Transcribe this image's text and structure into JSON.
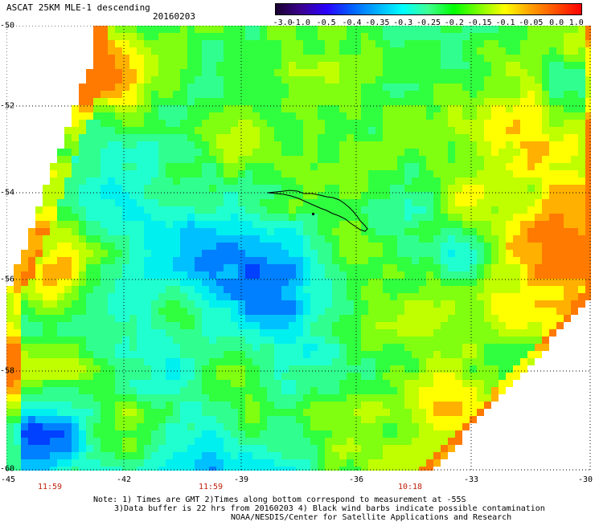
{
  "header": {
    "title": "ASCAT 25KM MLE-1 descending",
    "date": "20160203"
  },
  "colorbar": {
    "labels": [
      "-3.0",
      "-1.0",
      "-0.5",
      "-0.4",
      "-0.35",
      "-0.3",
      "-0.25",
      "-0.2",
      "-0.15",
      "-0.1",
      "-0.05",
      "0.0",
      "1.0"
    ],
    "colors": [
      "#1a0030",
      "#3a0090",
      "#2a00ff",
      "#0060ff",
      "#00b0ff",
      "#00ffff",
      "#40ff90",
      "#00ff00",
      "#80ff00",
      "#ffff00",
      "#ffa000",
      "#ff5000",
      "#ff0000"
    ]
  },
  "axes": {
    "lat_labels": [
      "-50",
      "-52",
      "-54",
      "-56",
      "-58",
      "-60"
    ],
    "lon_labels": [
      "-45",
      "-42",
      "-39",
      "-36",
      "-33",
      "-30"
    ]
  },
  "times": [
    "11:59",
    "11:59",
    "10:18"
  ],
  "notes": {
    "line1": "Note: 1) Times are GMT 2)Times along bottom correspond to measurement at -55S",
    "line2": "3)Data buffer is 22 hrs from 20160203 4) Black wind barbs indicate possible contamination",
    "line3": "NOAA/NESDIS/Center for Satellite Applications and Research"
  }
}
